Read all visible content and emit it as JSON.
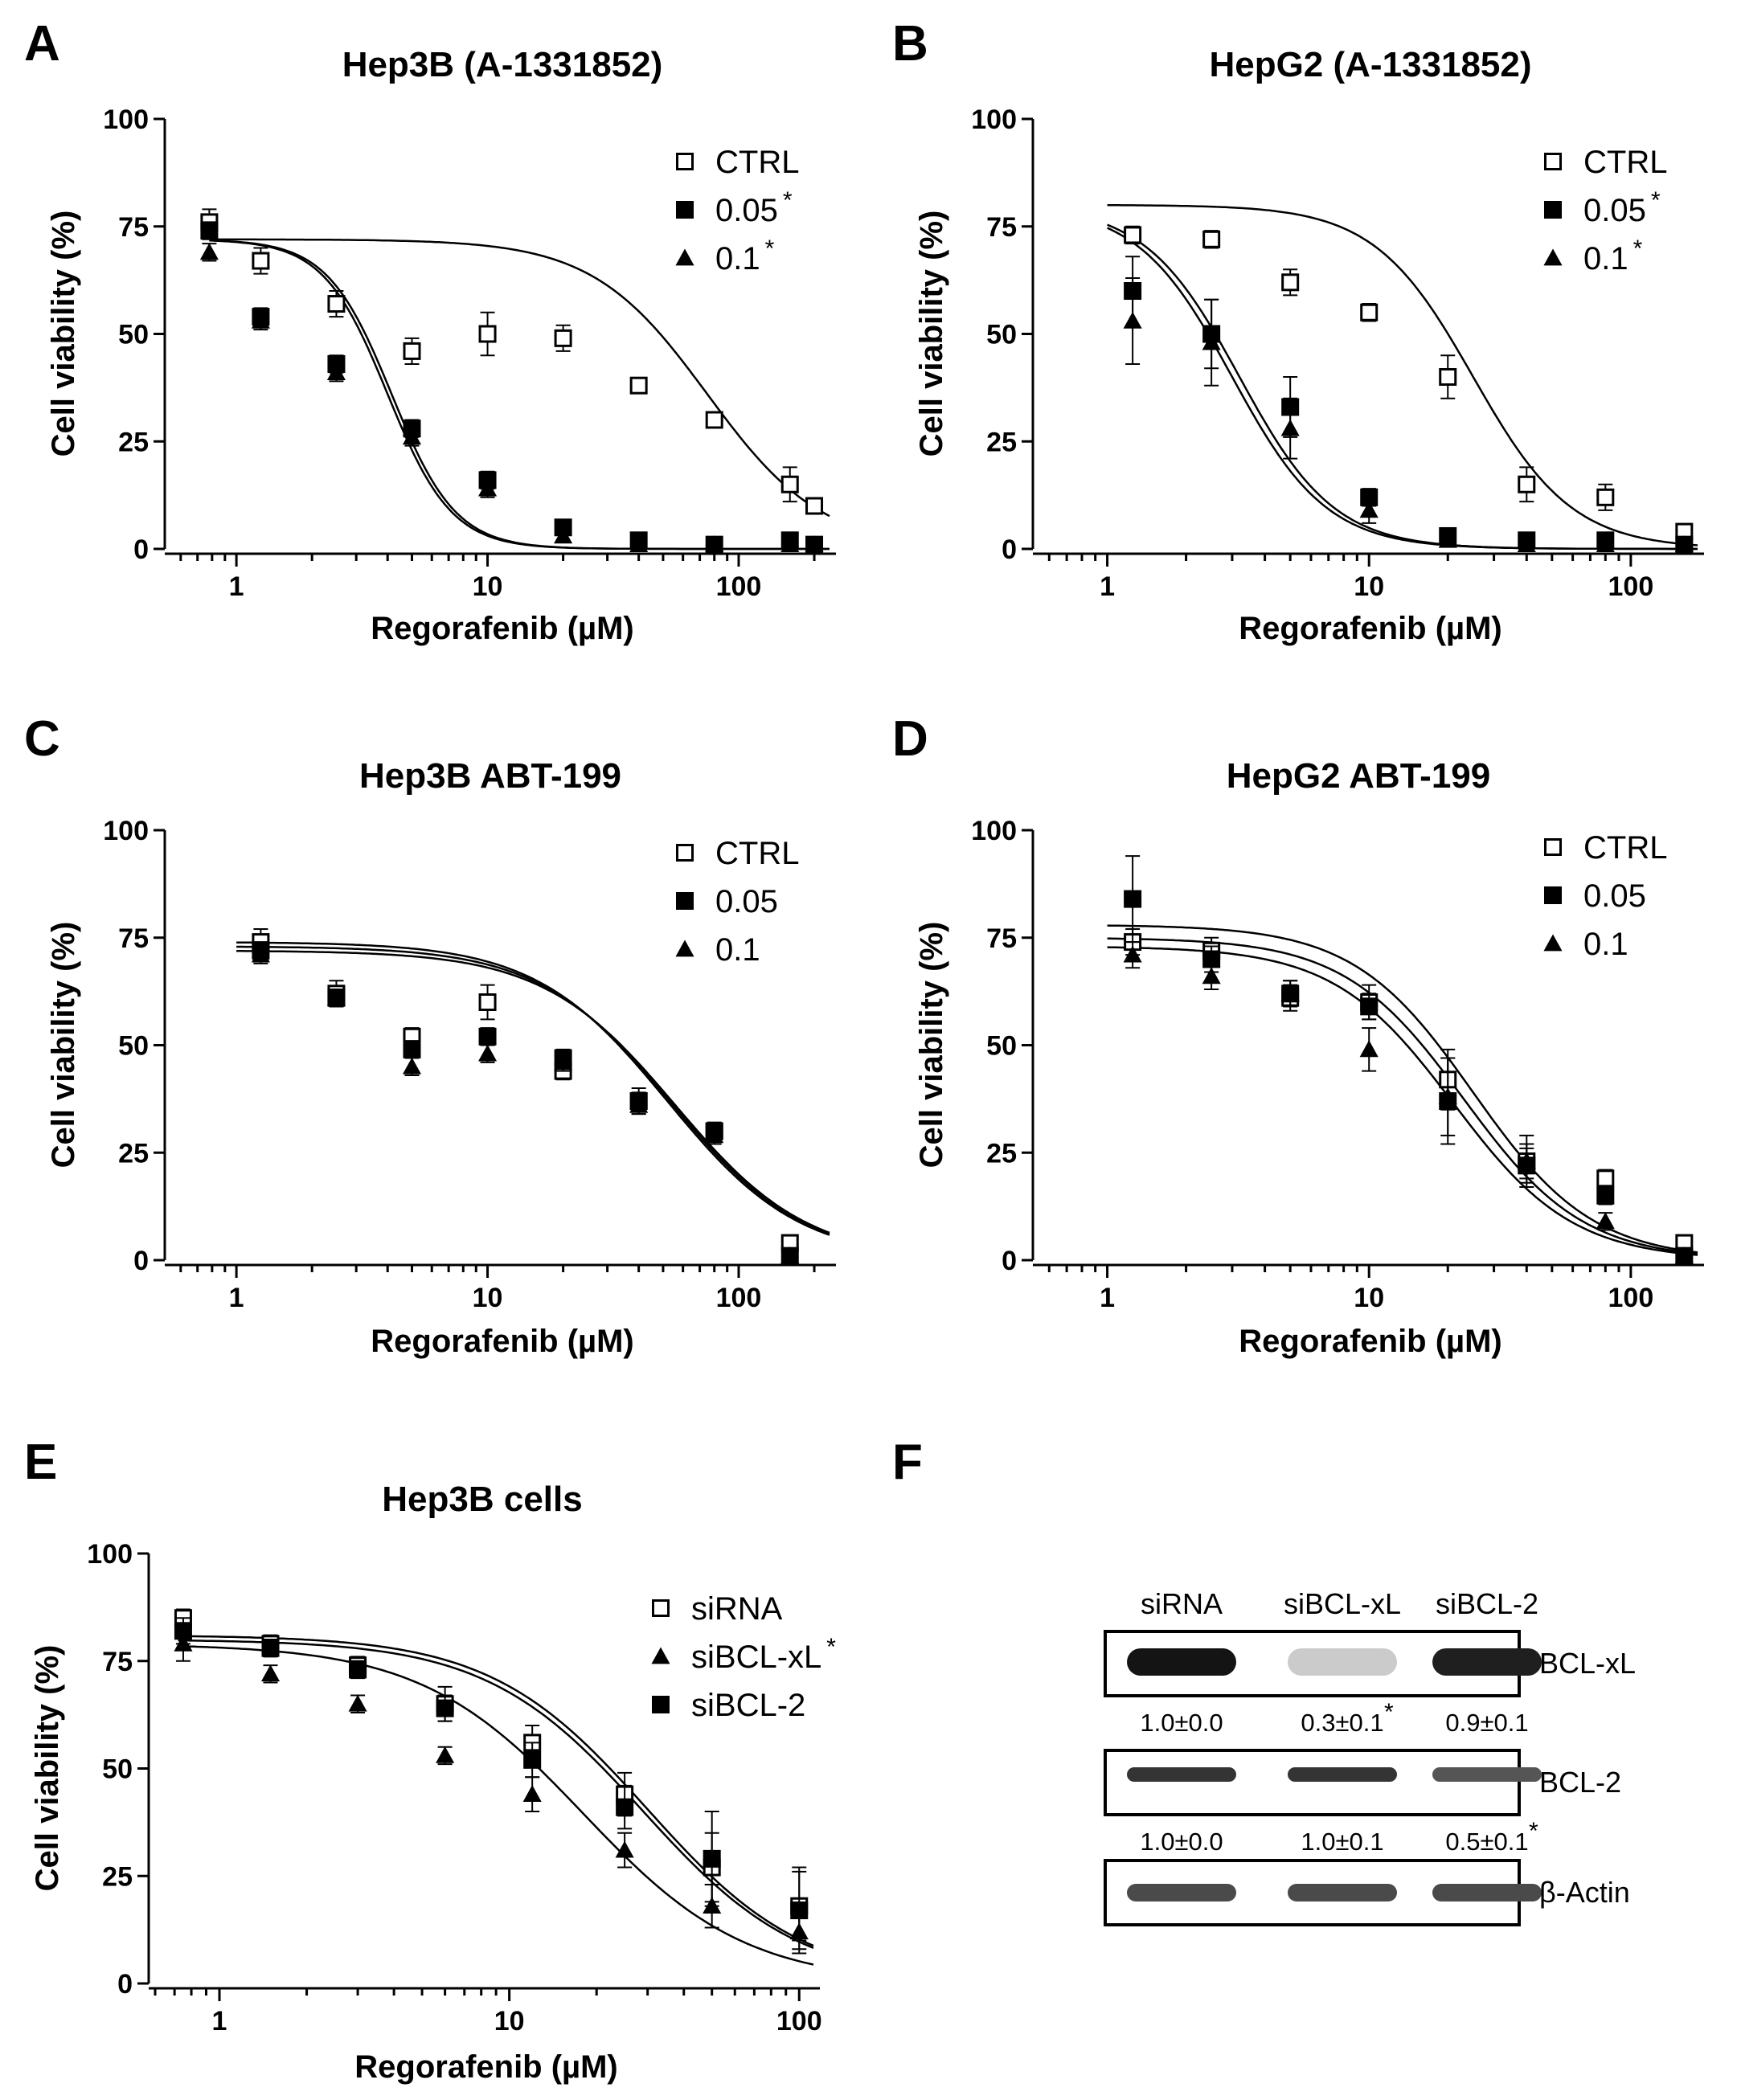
{
  "chart_data": [
    {
      "panel": "A",
      "type": "scatter",
      "title": "Hep3B (A-1331852)",
      "xlabel": "Regorafenib (µM)",
      "ylabel": "Cell viability (%)",
      "xscale": "log",
      "xlim": [
        0.55,
        230
      ],
      "ylim": [
        0,
        100
      ],
      "xticks": [
        1,
        10,
        100
      ],
      "xtick_labels": [
        "1",
        "10",
        "100"
      ],
      "yticks": [
        0,
        25,
        50,
        75,
        100
      ],
      "ytick_labels": [
        "0",
        "25",
        "50",
        "75",
        "100"
      ],
      "legend_position": "top-right",
      "series": [
        {
          "name": "CTRL",
          "marker": "open-square",
          "significance": "",
          "x": [
            0.78,
            1.25,
            2.5,
            5,
            10,
            20,
            40,
            80,
            160,
            200
          ],
          "y": [
            76,
            67,
            57,
            46,
            50,
            49,
            38,
            30,
            15,
            10
          ],
          "err": [
            3,
            3,
            3,
            3,
            5,
            3,
            1,
            1,
            4,
            1
          ],
          "fit": {
            "top": 72,
            "bottom": 0,
            "ec50": 75,
            "hill": 1.9
          }
        },
        {
          "name": "0.05",
          "marker": "filled-square",
          "significance": "*",
          "x": [
            0.78,
            1.25,
            2.5,
            5,
            10,
            20,
            40,
            80,
            160,
            200
          ],
          "y": [
            74,
            54,
            43,
            28,
            16,
            5,
            2,
            1,
            2,
            1
          ],
          "err": [
            2,
            2,
            2,
            2,
            2,
            1,
            1,
            1,
            1,
            1
          ],
          "fit": {
            "top": 72,
            "bottom": 0,
            "ec50": 4.15,
            "hill": 3.4
          }
        },
        {
          "name": "0.1",
          "marker": "filled-triangle",
          "significance": "*",
          "x": [
            0.78,
            1.25,
            2.5,
            5,
            10,
            20,
            40,
            80,
            160,
            200
          ],
          "y": [
            69,
            53,
            41,
            26,
            14,
            3,
            1,
            1,
            1,
            1
          ],
          "err": [
            2,
            2,
            2,
            2,
            2,
            1,
            1,
            1,
            1,
            1
          ],
          "fit": {
            "top": 72,
            "bottom": 0,
            "ec50": 4.0,
            "hill": 3.4
          }
        }
      ]
    },
    {
      "panel": "B",
      "type": "scatter",
      "title": "HepG2 (A-1331852)",
      "xlabel": "Regorafenib (µM)",
      "ylabel": "Cell viability (%)",
      "xscale": "log",
      "xlim": [
        0.55,
        180
      ],
      "ylim": [
        0,
        100
      ],
      "xticks": [
        1,
        10,
        100
      ],
      "xtick_labels": [
        "1",
        "10",
        "100"
      ],
      "yticks": [
        0,
        25,
        50,
        75,
        100
      ],
      "ytick_labels": [
        "0",
        "25",
        "50",
        "75",
        "100"
      ],
      "legend_position": "top-right",
      "series": [
        {
          "name": "CTRL",
          "marker": "open-square",
          "significance": "",
          "x": [
            1.25,
            2.5,
            5,
            10,
            20,
            40,
            80,
            160
          ],
          "y": [
            73,
            72,
            62,
            55,
            40,
            15,
            12,
            4
          ],
          "err": [
            2,
            2,
            3,
            2,
            5,
            4,
            3,
            1
          ],
          "fit": {
            "top": 80,
            "bottom": 0,
            "ec50": 25,
            "hill": 2.3
          }
        },
        {
          "name": "0.05",
          "marker": "filled-square",
          "significance": "*",
          "x": [
            1.25,
            2.5,
            5,
            10,
            20,
            40,
            80,
            160
          ],
          "y": [
            60,
            50,
            33,
            12,
            3,
            2,
            2,
            1
          ],
          "err": [
            8,
            8,
            7,
            2,
            1,
            1,
            1,
            1
          ],
          "fit": {
            "top": 80,
            "bottom": 0,
            "ec50": 3.2,
            "hill": 2.4
          }
        },
        {
          "name": "0.1",
          "marker": "filled-triangle",
          "significance": "*",
          "x": [
            1.25,
            2.5,
            5,
            10,
            20,
            40,
            80,
            160
          ],
          "y": [
            53,
            48,
            28,
            9,
            2,
            1,
            1,
            1
          ],
          "err": [
            10,
            10,
            7,
            3,
            1,
            1,
            1,
            1
          ],
          "fit": {
            "top": 80,
            "bottom": 0,
            "ec50": 3.0,
            "hill": 2.4
          }
        }
      ]
    },
    {
      "panel": "C",
      "type": "scatter",
      "title": "Hep3B ABT-199",
      "xlabel": "Regorafenib (µM)",
      "ylabel": "Cell viability (%)",
      "xscale": "log",
      "xlim": [
        0.55,
        230
      ],
      "ylim": [
        0,
        100
      ],
      "xticks": [
        1,
        10,
        100
      ],
      "xtick_labels": [
        "1",
        "10",
        "100"
      ],
      "yticks": [
        0,
        25,
        50,
        75,
        100
      ],
      "ytick_labels": [
        "0",
        "25",
        "50",
        "75",
        "100"
      ],
      "legend_position": "top-right",
      "series": [
        {
          "name": "CTRL",
          "marker": "open-square",
          "significance": "",
          "x": [
            1.25,
            2.5,
            5,
            10,
            20,
            40,
            80,
            160
          ],
          "y": [
            74,
            62,
            52,
            60,
            44,
            37,
            30,
            4
          ],
          "err": [
            3,
            3,
            2,
            4,
            2,
            3,
            2,
            1
          ],
          "fit": {
            "top": 74,
            "bottom": 0,
            "ec50": 52,
            "hill": 1.65
          }
        },
        {
          "name": "0.05",
          "marker": "filled-square",
          "significance": "",
          "x": [
            1.25,
            2.5,
            5,
            10,
            20,
            40,
            80,
            160
          ],
          "y": [
            72,
            61,
            49,
            52,
            47,
            37,
            30,
            1
          ],
          "err": [
            2,
            2,
            2,
            2,
            2,
            2,
            2,
            1
          ],
          "fit": {
            "top": 73,
            "bottom": 0,
            "ec50": 54,
            "hill": 1.65
          }
        },
        {
          "name": "0.1",
          "marker": "filled-triangle",
          "significance": "",
          "x": [
            1.25,
            2.5,
            5,
            10,
            20,
            40,
            80,
            160
          ],
          "y": [
            71,
            61,
            45,
            48,
            46,
            36,
            29,
            1
          ],
          "err": [
            2,
            2,
            2,
            2,
            2,
            2,
            2,
            1
          ],
          "fit": {
            "top": 72,
            "bottom": 0,
            "ec50": 56,
            "hill": 1.65
          }
        }
      ]
    },
    {
      "panel": "D",
      "type": "scatter",
      "title": "HepG2 ABT-199",
      "xlabel": "Regorafenib (µM)",
      "ylabel": "Cell viability (%)",
      "xscale": "log",
      "xlim": [
        0.55,
        180
      ],
      "ylim": [
        0,
        100
      ],
      "xticks": [
        1,
        10,
        100
      ],
      "xtick_labels": [
        "1",
        "10",
        "100"
      ],
      "yticks": [
        0,
        25,
        50,
        75,
        100
      ],
      "ytick_labels": [
        "0",
        "25",
        "50",
        "75",
        "100"
      ],
      "legend_position": "top-right",
      "series": [
        {
          "name": "CTRL",
          "marker": "open-square",
          "significance": "",
          "x": [
            1.25,
            2.5,
            5,
            10,
            20,
            40,
            80,
            160
          ],
          "y": [
            74,
            72,
            61,
            60,
            42,
            23,
            19,
            4
          ],
          "err": [
            3,
            3,
            3,
            4,
            7,
            6,
            2,
            1
          ],
          "fit": {
            "top": 78,
            "bottom": 0,
            "ec50": 25,
            "hill": 1.9
          }
        },
        {
          "name": "0.05",
          "marker": "filled-square",
          "significance": "",
          "x": [
            1.25,
            2.5,
            5,
            10,
            20,
            40,
            80,
            160
          ],
          "y": [
            84,
            70,
            62,
            59,
            37,
            22,
            15,
            1
          ],
          "err": [
            10,
            3,
            3,
            3,
            10,
            4,
            2,
            1
          ],
          "fit": {
            "top": 75,
            "bottom": 0,
            "ec50": 23,
            "hill": 1.9
          }
        },
        {
          "name": "0.1",
          "marker": "filled-triangle",
          "significance": "",
          "x": [
            1.25,
            2.5,
            5,
            10,
            20,
            40,
            80,
            160
          ],
          "y": [
            71,
            66,
            62,
            49,
            38,
            23,
            9,
            1
          ],
          "err": [
            3,
            3,
            3,
            5,
            9,
            4,
            2,
            1
          ],
          "fit": {
            "top": 73,
            "bottom": 0,
            "ec50": 21,
            "hill": 1.9
          }
        }
      ]
    },
    {
      "panel": "E",
      "type": "scatter",
      "title": "Hep3B cells",
      "xlabel": "Regorafenib (µM)",
      "ylabel": "Cell viability (%)",
      "xscale": "log",
      "xlim": [
        0.6,
        112
      ],
      "ylim": [
        0,
        100
      ],
      "xticks": [
        1,
        10,
        100
      ],
      "xtick_labels": [
        "1",
        "10",
        "100"
      ],
      "yticks": [
        0,
        25,
        50,
        75,
        100
      ],
      "ytick_labels": [
        "0",
        "25",
        "50",
        "75",
        "100"
      ],
      "legend_position": "top-right",
      "series": [
        {
          "name": "siRNA",
          "marker": "open-square",
          "significance": "",
          "x": [
            0.75,
            1.5,
            3,
            6,
            12,
            25,
            50,
            100
          ],
          "y": [
            85,
            79,
            74,
            65,
            56,
            44,
            27,
            18
          ],
          "err": [
            2,
            2,
            2,
            4,
            4,
            5,
            8,
            8
          ],
          "fit": {
            "top": 81,
            "bottom": 0,
            "ec50": 30,
            "hill": 1.6
          }
        },
        {
          "name": "siBCL-xL",
          "marker": "filled-triangle",
          "significance": "*",
          "x": [
            0.75,
            1.5,
            3,
            6,
            12,
            25,
            50,
            100
          ],
          "y": [
            79,
            72,
            65,
            53,
            44,
            31,
            18,
            12
          ],
          "err": [
            4,
            2,
            2,
            2,
            4,
            4,
            5,
            4
          ],
          "fit": {
            "top": 79,
            "bottom": 0,
            "ec50": 18,
            "hill": 1.55
          }
        },
        {
          "name": "siBCL-2",
          "marker": "filled-square",
          "significance": "",
          "x": [
            0.75,
            1.5,
            3,
            6,
            12,
            25,
            50,
            100
          ],
          "y": [
            82,
            78,
            73,
            64,
            52,
            41,
            29,
            17
          ],
          "err": [
            3,
            2,
            2,
            3,
            4,
            5,
            11,
            10
          ],
          "fit": {
            "top": 80,
            "bottom": 0,
            "ec50": 29,
            "hill": 1.6
          }
        }
      ]
    }
  ],
  "panel_f": {
    "letter": "F",
    "lanes": [
      "siRNA",
      "siBCL-xL",
      "siBCL-2"
    ],
    "blots": [
      {
        "protein": "BCL-xL",
        "intensity": [
          1.0,
          0.15,
          0.95
        ],
        "quant": [
          "1.0±0.0",
          "0.3±0.1",
          "0.9±0.1"
        ],
        "stars": [
          "",
          "*",
          ""
        ]
      },
      {
        "protein": "BCL-2",
        "intensity": [
          0.85,
          0.85,
          0.7
        ],
        "quant": [
          "1.0±0.0",
          "1.0±0.1",
          "0.5±0.1"
        ],
        "stars": [
          "",
          "",
          "*"
        ]
      },
      {
        "protein": "β-Actin",
        "intensity": [
          0.75,
          0.75,
          0.75
        ],
        "quant": [],
        "stars": []
      }
    ]
  }
}
